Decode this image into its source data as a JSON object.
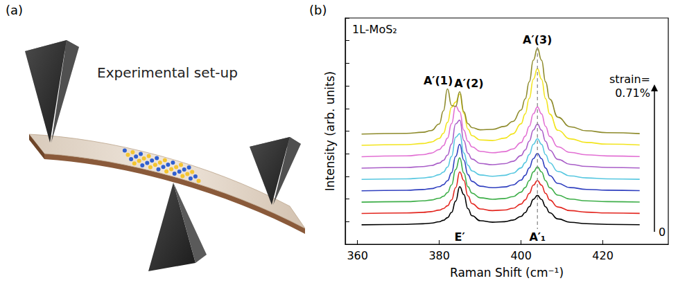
{
  "panel_letters": [
    "(a)",
    "(b)"
  ],
  "diagram": {
    "label": "Experimental set-up"
  },
  "chart_data": {
    "type": "line",
    "x_label": "Raman Shift (cm⁻¹)",
    "y_label": "Intensity (arb. units)",
    "annotation": "1L-MoS₂",
    "strain_labels": {
      "from": "0",
      "to": [
        "strain=",
        "0.71%"
      ]
    },
    "reference_x": 404,
    "xlim": [
      357,
      436
    ],
    "xticks": [
      360,
      380,
      400,
      420
    ],
    "ylim": [
      0,
      10
    ],
    "yticks": [
      0,
      1,
      2,
      3,
      4,
      5,
      6,
      7,
      8,
      9,
      10
    ],
    "grid": false,
    "tick_labels": "x",
    "x": [
      361,
      372,
      376,
      378,
      380,
      381,
      382,
      383,
      384,
      385,
      386,
      387,
      388,
      390,
      393,
      396,
      398,
      400,
      401,
      402,
      403,
      404,
      405,
      406,
      407,
      409,
      412,
      416,
      421,
      429
    ],
    "series": [
      {
        "color": "#000000",
        "values": [
          0.861,
          0.88,
          0.905,
          0.933,
          0.995,
          1.058,
          1.173,
          1.407,
          1.907,
          2.543,
          2.199,
          1.574,
          1.26,
          1.041,
          0.975,
          0.998,
          1.065,
          1.232,
          1.398,
          1.657,
          1.983,
          2.161,
          1.981,
          1.653,
          1.392,
          1.119,
          0.973,
          0.91,
          0.88,
          0.865
        ],
        "peak_labels": [
          {
            "text": "E′",
            "x": 385
          },
          {
            "text": "A′₁",
            "x": 404
          }
        ]
      },
      {
        "color": "#e3261f",
        "values": [
          1.362,
          1.382,
          1.41,
          1.441,
          1.509,
          1.576,
          1.702,
          1.956,
          2.501,
          3.194,
          2.819,
          2.14,
          1.798,
          1.56,
          1.488,
          1.514,
          1.59,
          1.776,
          1.962,
          2.25,
          2.613,
          2.812,
          2.611,
          2.246,
          1.954,
          1.649,
          1.486,
          1.417,
          1.384,
          1.366
        ]
      },
      {
        "color": "#3dae48",
        "values": [
          1.863,
          1.885,
          1.917,
          1.952,
          2.035,
          2.121,
          2.281,
          2.621,
          3.306,
          3.818,
          3.148,
          2.542,
          2.258,
          2.054,
          1.99,
          2.023,
          2.104,
          2.306,
          2.504,
          2.812,
          3.2,
          3.413,
          3.198,
          2.808,
          2.496,
          2.17,
          1.996,
          1.921,
          1.886,
          1.867
        ]
      },
      {
        "color": "#2f3fbf",
        "values": [
          2.364,
          2.387,
          2.421,
          2.457,
          2.544,
          2.634,
          2.805,
          3.16,
          3.882,
          4.42,
          3.715,
          3.078,
          2.78,
          2.565,
          2.499,
          2.534,
          2.621,
          2.835,
          3.046,
          3.373,
          3.786,
          4.013,
          3.785,
          3.369,
          3.037,
          2.69,
          2.505,
          2.425,
          2.389,
          2.368
        ]
      },
      {
        "color": "#56c7e0",
        "values": [
          2.865,
          2.891,
          2.929,
          2.971,
          3.076,
          3.19,
          3.411,
          3.881,
          4.73,
          4.889,
          4.032,
          3.492,
          3.243,
          3.061,
          3.005,
          3.047,
          3.142,
          3.375,
          3.605,
          3.965,
          4.417,
          4.663,
          4.415,
          3.959,
          3.599,
          3.219,
          3.019,
          2.932,
          2.892,
          2.87
        ]
      },
      {
        "color": "#a95ec8",
        "values": [
          3.366,
          3.393,
          3.433,
          3.478,
          3.588,
          3.706,
          3.938,
          4.43,
          5.319,
          5.485,
          4.589,
          4.023,
          3.764,
          3.572,
          3.516,
          3.562,
          3.666,
          3.918,
          4.168,
          4.558,
          5.047,
          5.314,
          5.045,
          4.551,
          4.161,
          3.749,
          3.533,
          3.439,
          3.396,
          3.372
        ]
      },
      {
        "color": "#e26fd3",
        "values": [
          3.87,
          3.907,
          3.96,
          4.026,
          4.185,
          4.359,
          4.691,
          5.332,
          6.114,
          5.854,
          5.042,
          4.549,
          4.303,
          4.107,
          4.043,
          4.094,
          4.211,
          4.493,
          4.775,
          5.213,
          5.764,
          6.068,
          5.762,
          5.208,
          4.766,
          4.304,
          4.058,
          3.952,
          3.903,
          3.876
        ]
      },
      {
        "color": "#f2e41c",
        "values": [
          4.371,
          4.404,
          4.452,
          4.513,
          4.681,
          4.9,
          5.385,
          6.062,
          6.285,
          6.635,
          5.782,
          5.091,
          4.801,
          4.611,
          4.584,
          4.69,
          4.88,
          5.325,
          5.762,
          6.44,
          7.295,
          7.763,
          7.293,
          6.435,
          5.754,
          5.039,
          4.66,
          4.498,
          4.425,
          4.387
        ]
      },
      {
        "color": "#8d8a2a",
        "values": [
          4.87,
          4.9,
          4.949,
          5.023,
          5.315,
          5.893,
          6.864,
          6.133,
          6.092,
          6.745,
          5.853,
          5.328,
          5.155,
          5.058,
          5.076,
          5.211,
          5.429,
          5.931,
          6.42,
          7.178,
          8.135,
          8.658,
          8.134,
          7.175,
          6.415,
          5.616,
          5.193,
          5.013,
          4.932,
          4.889
        ],
        "peak_labels": [
          {
            "text": "A′(1)",
            "x": 382
          },
          {
            "text": "A′(2)",
            "x": 385
          },
          {
            "text": "A′(3)",
            "x": 404
          }
        ]
      }
    ]
  }
}
